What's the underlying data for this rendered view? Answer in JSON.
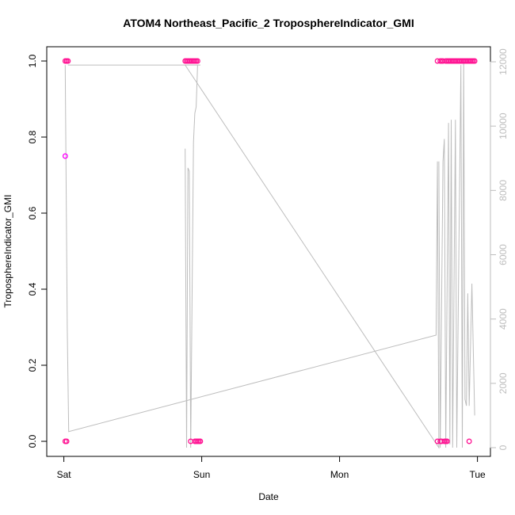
{
  "chart_data": {
    "type": "scatter",
    "title": "ATOM4 Northeast_Pacific_2 TroposphereIndicator_GMI",
    "xlabel": "Date",
    "ylabel": "TroposphereIndicator_GMI",
    "x_ticks": [
      "Sat",
      "Sun",
      "Mon",
      "Tue"
    ],
    "xlim_days": [
      -0.05,
      3.05
    ],
    "ylim": [
      0,
      1
    ],
    "y_ticks": [
      "0.0",
      "0.2",
      "0.4",
      "0.6",
      "0.8",
      "1.0"
    ],
    "y2lim": [
      0,
      12000
    ],
    "y2_ticks": [
      "0",
      "2000",
      "4000",
      "6000",
      "8000",
      "10000",
      "12000"
    ],
    "colors": {
      "points": "#ff1493",
      "points_alt": "#ff00ff",
      "line": "#bdbdbd",
      "axis": "#000000",
      "axis2": "#bdbdbd"
    },
    "series": [
      {
        "style": "points",
        "points": [
          {
            "x": 0.01,
            "y": 1.0
          },
          {
            "x": 0.02,
            "y": 1.0
          },
          {
            "x": 0.03,
            "y": 1.0
          },
          {
            "x": 0.01,
            "y": 0.75
          },
          {
            "x": 0.01,
            "y": 0.0
          },
          {
            "x": 0.02,
            "y": 0.0
          },
          {
            "x": 0.88,
            "y": 1.0
          },
          {
            "x": 0.89,
            "y": 1.0
          },
          {
            "x": 0.9,
            "y": 1.0
          },
          {
            "x": 0.91,
            "y": 1.0
          },
          {
            "x": 0.92,
            "y": 1.0
          },
          {
            "x": 0.93,
            "y": 1.0
          },
          {
            "x": 0.94,
            "y": 1.0
          },
          {
            "x": 0.95,
            "y": 1.0
          },
          {
            "x": 0.96,
            "y": 1.0
          },
          {
            "x": 0.97,
            "y": 1.0
          },
          {
            "x": 0.92,
            "y": 0.0
          },
          {
            "x": 0.95,
            "y": 0.0
          },
          {
            "x": 0.96,
            "y": 0.0
          },
          {
            "x": 0.97,
            "y": 0.0
          },
          {
            "x": 0.98,
            "y": 0.0
          },
          {
            "x": 0.99,
            "y": 0.0
          },
          {
            "x": 2.71,
            "y": 1.0
          },
          {
            "x": 2.73,
            "y": 1.0
          },
          {
            "x": 2.74,
            "y": 1.0
          },
          {
            "x": 2.75,
            "y": 1.0
          },
          {
            "x": 2.77,
            "y": 1.0
          },
          {
            "x": 2.78,
            "y": 1.0
          },
          {
            "x": 2.79,
            "y": 1.0
          },
          {
            "x": 2.8,
            "y": 1.0
          },
          {
            "x": 2.81,
            "y": 1.0
          },
          {
            "x": 2.82,
            "y": 1.0
          },
          {
            "x": 2.83,
            "y": 1.0
          },
          {
            "x": 2.84,
            "y": 1.0
          },
          {
            "x": 2.85,
            "y": 1.0
          },
          {
            "x": 2.86,
            "y": 1.0
          },
          {
            "x": 2.87,
            "y": 1.0
          },
          {
            "x": 2.88,
            "y": 1.0
          },
          {
            "x": 2.89,
            "y": 1.0
          },
          {
            "x": 2.9,
            "y": 1.0
          },
          {
            "x": 2.91,
            "y": 1.0
          },
          {
            "x": 2.92,
            "y": 1.0
          },
          {
            "x": 2.93,
            "y": 1.0
          },
          {
            "x": 2.94,
            "y": 1.0
          },
          {
            "x": 2.95,
            "y": 1.0
          },
          {
            "x": 2.96,
            "y": 1.0
          },
          {
            "x": 2.97,
            "y": 1.0
          },
          {
            "x": 2.98,
            "y": 1.0
          },
          {
            "x": 2.71,
            "y": 0.0
          },
          {
            "x": 2.73,
            "y": 0.0
          },
          {
            "x": 2.74,
            "y": 0.0
          },
          {
            "x": 2.76,
            "y": 0.0
          },
          {
            "x": 2.77,
            "y": 0.0
          },
          {
            "x": 2.78,
            "y": 0.0
          },
          {
            "x": 2.94,
            "y": 0.0
          }
        ]
      },
      {
        "style": "line",
        "axis": "right",
        "points": [
          {
            "x": 0.01,
            "y": 11900
          },
          {
            "x": 0.025,
            "y": 3700
          },
          {
            "x": 0.035,
            "y": 500
          },
          {
            "x": 2.7,
            "y": 3500
          },
          {
            "x": 2.71,
            "y": 8900
          },
          {
            "x": 2.72,
            "y": 0
          },
          {
            "x": 0.88,
            "y": 11900
          },
          {
            "x": 0.03,
            "y": 11900
          },
          {
            "x": 0.88,
            "y": 11900
          },
          {
            "x": 0.89,
            "y": 11900
          },
          {
            "x": 0.9,
            "y": 11900
          },
          {
            "x": 0.97,
            "y": 11900
          },
          {
            "x": 0.99,
            "y": 11900
          }
        ]
      },
      {
        "style": "line",
        "axis": "right",
        "points": [
          {
            "x": 0.88,
            "y": 9300
          },
          {
            "x": 0.89,
            "y": 0
          },
          {
            "x": 0.9,
            "y": 8700
          },
          {
            "x": 0.91,
            "y": 8600
          },
          {
            "x": 0.92,
            "y": 0
          },
          {
            "x": 0.94,
            "y": 9500
          },
          {
            "x": 0.95,
            "y": 10400
          },
          {
            "x": 0.96,
            "y": 10600
          },
          {
            "x": 0.97,
            "y": 11900
          }
        ]
      },
      {
        "style": "line",
        "axis": "right",
        "points": [
          {
            "x": 2.72,
            "y": 8900
          },
          {
            "x": 2.73,
            "y": 0
          },
          {
            "x": 2.75,
            "y": 8900
          },
          {
            "x": 2.76,
            "y": 9600
          },
          {
            "x": 2.77,
            "y": 0
          },
          {
            "x": 2.79,
            "y": 10100
          },
          {
            "x": 2.8,
            "y": 100
          },
          {
            "x": 2.81,
            "y": 10200
          },
          {
            "x": 2.82,
            "y": 0
          },
          {
            "x": 2.84,
            "y": 10200
          },
          {
            "x": 2.85,
            "y": 0
          },
          {
            "x": 2.88,
            "y": 11900
          },
          {
            "x": 2.89,
            "y": 0
          },
          {
            "x": 2.9,
            "y": 12000
          },
          {
            "x": 2.91,
            "y": 1500
          },
          {
            "x": 2.92,
            "y": 1300
          },
          {
            "x": 2.93,
            "y": 4800
          },
          {
            "x": 2.94,
            "y": 1300
          },
          {
            "x": 2.96,
            "y": 5100
          },
          {
            "x": 2.98,
            "y": 1000
          }
        ]
      }
    ]
  }
}
